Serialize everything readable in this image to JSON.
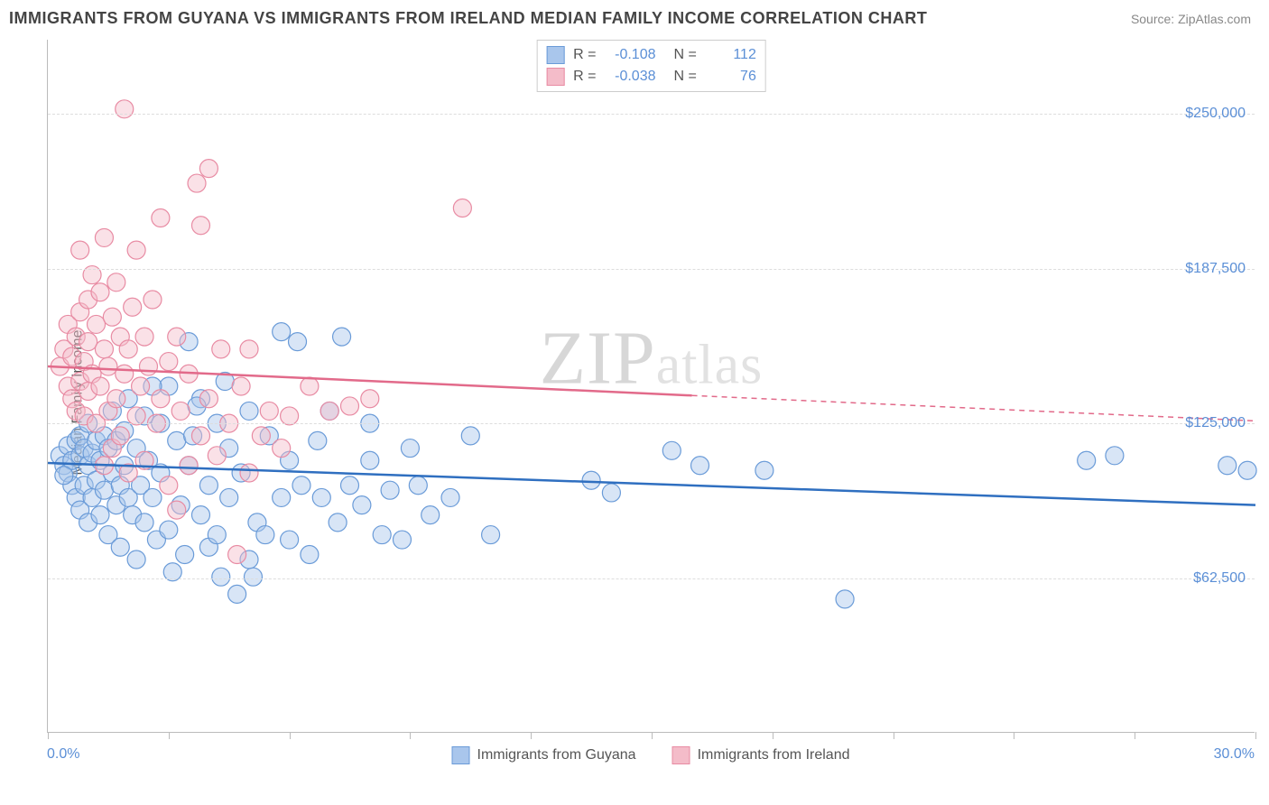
{
  "title": "IMMIGRANTS FROM GUYANA VS IMMIGRANTS FROM IRELAND MEDIAN FAMILY INCOME CORRELATION CHART",
  "source": "Source: ZipAtlas.com",
  "ylabel": "Median Family Income",
  "watermark_a": "ZIP",
  "watermark_b": "atlas",
  "chart": {
    "type": "scatter",
    "xlim": [
      0,
      30
    ],
    "ylim": [
      0,
      280000
    ],
    "x_tick_positions": [
      0,
      3,
      6,
      9,
      12,
      15,
      18,
      21,
      24,
      27,
      30
    ],
    "x_min_label": "0.0%",
    "x_max_label": "30.0%",
    "y_gridlines": [
      62500,
      125000,
      187500,
      250000
    ],
    "y_tick_labels": [
      "$62,500",
      "$125,000",
      "$187,500",
      "$250,000"
    ],
    "background_color": "#ffffff",
    "grid_color": "#dddddd",
    "axis_color": "#bbbbbb",
    "tick_label_color": "#5b8fd6",
    "marker_radius": 10,
    "marker_opacity": 0.45,
    "series": [
      {
        "name": "Immigrants from Guyana",
        "color_fill": "#a9c6ec",
        "color_stroke": "#6a9bd8",
        "line_color": "#2f6fc0",
        "R": "-0.108",
        "N": "112",
        "trend": {
          "x1": 0,
          "y1": 109000,
          "x2": 30,
          "y2": 92000,
          "solid_until_x": 30
        },
        "points": [
          [
            0.3,
            112000
          ],
          [
            0.4,
            108000
          ],
          [
            0.5,
            116000
          ],
          [
            0.5,
            105000
          ],
          [
            0.6,
            110000
          ],
          [
            0.6,
            100000
          ],
          [
            0.7,
            118000
          ],
          [
            0.7,
            95000
          ],
          [
            0.8,
            112000
          ],
          [
            0.8,
            120000
          ],
          [
            0.8,
            90000
          ],
          [
            0.9,
            115000
          ],
          [
            0.9,
            100000
          ],
          [
            1.0,
            108000
          ],
          [
            1.0,
            125000
          ],
          [
            1.0,
            85000
          ],
          [
            1.1,
            113000
          ],
          [
            1.1,
            95000
          ],
          [
            1.2,
            118000
          ],
          [
            1.2,
            102000
          ],
          [
            1.3,
            110000
          ],
          [
            1.3,
            88000
          ],
          [
            1.4,
            120000
          ],
          [
            1.4,
            98000
          ],
          [
            1.5,
            115000
          ],
          [
            1.5,
            80000
          ],
          [
            1.6,
            105000
          ],
          [
            1.6,
            130000
          ],
          [
            1.7,
            92000
          ],
          [
            1.7,
            118000
          ],
          [
            1.8,
            100000
          ],
          [
            1.8,
            75000
          ],
          [
            1.9,
            122000
          ],
          [
            1.9,
            108000
          ],
          [
            2.0,
            95000
          ],
          [
            2.0,
            135000
          ],
          [
            2.1,
            88000
          ],
          [
            2.2,
            115000
          ],
          [
            2.2,
            70000
          ],
          [
            2.3,
            100000
          ],
          [
            2.4,
            128000
          ],
          [
            2.4,
            85000
          ],
          [
            2.5,
            110000
          ],
          [
            2.6,
            95000
          ],
          [
            2.7,
            78000
          ],
          [
            2.8,
            125000
          ],
          [
            2.8,
            105000
          ],
          [
            3.0,
            82000
          ],
          [
            3.0,
            140000
          ],
          [
            3.1,
            65000
          ],
          [
            3.2,
            118000
          ],
          [
            3.3,
            92000
          ],
          [
            3.4,
            72000
          ],
          [
            3.5,
            158000
          ],
          [
            3.5,
            108000
          ],
          [
            3.6,
            120000
          ],
          [
            3.8,
            88000
          ],
          [
            3.8,
            135000
          ],
          [
            4.0,
            100000
          ],
          [
            4.0,
            75000
          ],
          [
            4.2,
            80000
          ],
          [
            4.2,
            125000
          ],
          [
            4.3,
            63000
          ],
          [
            4.5,
            115000
          ],
          [
            4.5,
            95000
          ],
          [
            4.7,
            56000
          ],
          [
            4.8,
            105000
          ],
          [
            5.0,
            70000
          ],
          [
            5.0,
            130000
          ],
          [
            5.1,
            63000
          ],
          [
            5.2,
            85000
          ],
          [
            5.4,
            80000
          ],
          [
            5.5,
            120000
          ],
          [
            5.8,
            95000
          ],
          [
            5.8,
            162000
          ],
          [
            6.0,
            78000
          ],
          [
            6.0,
            110000
          ],
          [
            6.2,
            158000
          ],
          [
            6.3,
            100000
          ],
          [
            6.5,
            72000
          ],
          [
            6.7,
            118000
          ],
          [
            6.8,
            95000
          ],
          [
            7.0,
            130000
          ],
          [
            7.2,
            85000
          ],
          [
            7.3,
            160000
          ],
          [
            7.5,
            100000
          ],
          [
            7.8,
            92000
          ],
          [
            8.0,
            110000
          ],
          [
            8.0,
            125000
          ],
          [
            8.3,
            80000
          ],
          [
            8.5,
            98000
          ],
          [
            8.8,
            78000
          ],
          [
            9.0,
            115000
          ],
          [
            9.2,
            100000
          ],
          [
            9.5,
            88000
          ],
          [
            10.0,
            95000
          ],
          [
            10.5,
            120000
          ],
          [
            11.0,
            80000
          ],
          [
            13.5,
            102000
          ],
          [
            14.0,
            97000
          ],
          [
            15.5,
            114000
          ],
          [
            16.2,
            108000
          ],
          [
            17.8,
            106000
          ],
          [
            19.8,
            54000
          ],
          [
            25.8,
            110000
          ],
          [
            26.5,
            112000
          ],
          [
            29.3,
            108000
          ],
          [
            29.8,
            106000
          ],
          [
            2.6,
            140000
          ],
          [
            3.7,
            132000
          ],
          [
            4.4,
            142000
          ],
          [
            0.4,
            104000
          ]
        ]
      },
      {
        "name": "Immigrants from Ireland",
        "color_fill": "#f4bcc9",
        "color_stroke": "#e88ba3",
        "line_color": "#e26a8a",
        "R": "-0.038",
        "N": "76",
        "trend": {
          "x1": 0,
          "y1": 148000,
          "x2": 30,
          "y2": 126000,
          "solid_until_x": 16
        },
        "points": [
          [
            0.3,
            148000
          ],
          [
            0.4,
            155000
          ],
          [
            0.5,
            140000
          ],
          [
            0.5,
            165000
          ],
          [
            0.6,
            152000
          ],
          [
            0.6,
            135000
          ],
          [
            0.7,
            160000
          ],
          [
            0.7,
            130000
          ],
          [
            0.8,
            170000
          ],
          [
            0.8,
            142000
          ],
          [
            0.8,
            195000
          ],
          [
            0.9,
            150000
          ],
          [
            0.9,
            128000
          ],
          [
            1.0,
            175000
          ],
          [
            1.0,
            138000
          ],
          [
            1.0,
            158000
          ],
          [
            1.1,
            185000
          ],
          [
            1.1,
            145000
          ],
          [
            1.2,
            165000
          ],
          [
            1.2,
            125000
          ],
          [
            1.3,
            178000
          ],
          [
            1.3,
            140000
          ],
          [
            1.4,
            155000
          ],
          [
            1.4,
            200000
          ],
          [
            1.5,
            130000
          ],
          [
            1.5,
            148000
          ],
          [
            1.6,
            168000
          ],
          [
            1.6,
            115000
          ],
          [
            1.7,
            182000
          ],
          [
            1.7,
            135000
          ],
          [
            1.8,
            160000
          ],
          [
            1.8,
            120000
          ],
          [
            1.9,
            145000
          ],
          [
            1.9,
            252000
          ],
          [
            2.0,
            155000
          ],
          [
            2.0,
            105000
          ],
          [
            2.1,
            172000
          ],
          [
            2.2,
            128000
          ],
          [
            2.2,
            195000
          ],
          [
            2.3,
            140000
          ],
          [
            2.4,
            160000
          ],
          [
            2.4,
            110000
          ],
          [
            2.5,
            148000
          ],
          [
            2.6,
            175000
          ],
          [
            2.7,
            125000
          ],
          [
            2.8,
            135000
          ],
          [
            2.8,
            208000
          ],
          [
            3.0,
            100000
          ],
          [
            3.0,
            150000
          ],
          [
            3.2,
            160000
          ],
          [
            3.2,
            90000
          ],
          [
            3.3,
            130000
          ],
          [
            3.5,
            145000
          ],
          [
            3.5,
            108000
          ],
          [
            3.7,
            222000
          ],
          [
            3.8,
            120000
          ],
          [
            3.8,
            205000
          ],
          [
            4.0,
            135000
          ],
          [
            4.0,
            228000
          ],
          [
            4.2,
            112000
          ],
          [
            4.3,
            155000
          ],
          [
            4.5,
            125000
          ],
          [
            4.7,
            72000
          ],
          [
            4.8,
            140000
          ],
          [
            5.0,
            155000
          ],
          [
            5.0,
            105000
          ],
          [
            5.3,
            120000
          ],
          [
            5.5,
            130000
          ],
          [
            5.8,
            115000
          ],
          [
            6.0,
            128000
          ],
          [
            6.5,
            140000
          ],
          [
            7.0,
            130000
          ],
          [
            7.5,
            132000
          ],
          [
            8.0,
            135000
          ],
          [
            10.3,
            212000
          ],
          [
            1.4,
            108000
          ]
        ]
      }
    ]
  }
}
